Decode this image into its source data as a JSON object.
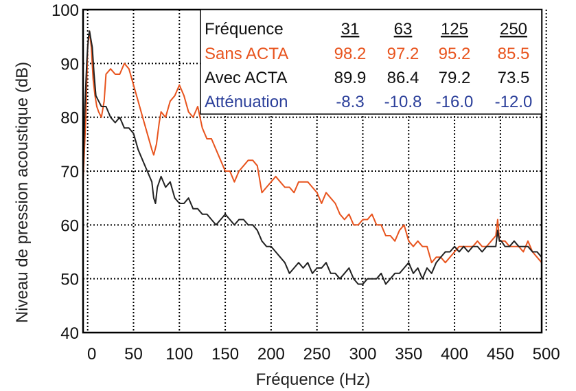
{
  "chart_data": {
    "type": "line",
    "xlabel": "Fréquence (Hz)",
    "ylabel": "Niveau de pression acoustique (dB)",
    "xlim": [
      -5,
      495
    ],
    "ylim": [
      40,
      100
    ],
    "xticks": [
      "0",
      "50",
      "100",
      "150",
      "200",
      "250",
      "300",
      "350",
      "400",
      "450",
      "500"
    ],
    "yticks": [
      "40",
      "50",
      "60",
      "70",
      "80",
      "90",
      "100"
    ],
    "grid": true,
    "series": [
      {
        "name": "Sans ACTA",
        "color": "#e8541e",
        "x": [
          -5,
          -2,
          0,
          2,
          4,
          6,
          8,
          10,
          12,
          15,
          18,
          20,
          25,
          30,
          35,
          40,
          45,
          50,
          55,
          60,
          65,
          70,
          72,
          75,
          78,
          80,
          85,
          90,
          95,
          100,
          105,
          110,
          115,
          120,
          125,
          130,
          135,
          140,
          145,
          150,
          155,
          160,
          165,
          170,
          175,
          180,
          185,
          190,
          195,
          200,
          205,
          210,
          215,
          220,
          225,
          230,
          235,
          240,
          245,
          250,
          255,
          260,
          265,
          270,
          275,
          280,
          285,
          290,
          295,
          300,
          305,
          310,
          315,
          320,
          325,
          330,
          335,
          340,
          345,
          350,
          355,
          360,
          365,
          370,
          375,
          380,
          385,
          390,
          395,
          400,
          405,
          410,
          415,
          420,
          425,
          430,
          435,
          440,
          445,
          447,
          449,
          451,
          455,
          460,
          465,
          470,
          475,
          480,
          485,
          490,
          495
        ],
        "y": [
          68,
          80,
          93,
          96,
          93,
          87,
          84,
          82,
          81,
          80,
          83,
          88,
          89,
          88,
          88,
          90,
          89,
          86,
          83,
          80,
          77,
          74,
          73,
          75,
          79,
          81,
          80,
          83,
          84,
          86,
          84,
          81,
          80,
          82,
          78,
          76,
          76,
          74,
          72,
          70,
          70,
          68,
          70,
          71,
          72,
          72,
          71,
          66,
          67,
          68,
          69,
          68,
          67,
          67,
          66,
          68,
          68,
          68,
          67,
          66,
          64,
          66,
          65,
          64,
          62,
          61,
          62,
          60,
          60,
          61,
          61,
          62,
          60,
          60,
          58,
          58,
          57,
          59,
          60,
          57,
          56,
          57,
          56,
          56,
          53,
          54,
          54,
          53,
          54,
          55,
          56,
          56,
          56,
          56,
          57,
          56,
          56,
          57,
          58,
          61,
          57,
          57,
          57,
          56,
          56,
          56,
          55,
          57,
          55,
          54,
          53
        ]
      },
      {
        "name": "Avec ACTA",
        "color": "#222222",
        "x": [
          -5,
          -3,
          -1,
          0,
          1,
          2,
          3,
          5,
          7,
          9,
          12,
          15,
          20,
          25,
          30,
          35,
          40,
          45,
          50,
          55,
          60,
          65,
          70,
          72,
          74,
          76,
          78,
          80,
          85,
          90,
          95,
          100,
          105,
          110,
          115,
          120,
          125,
          130,
          135,
          140,
          145,
          150,
          155,
          160,
          165,
          170,
          175,
          180,
          185,
          190,
          195,
          200,
          205,
          210,
          215,
          220,
          225,
          230,
          235,
          240,
          245,
          250,
          255,
          260,
          265,
          270,
          275,
          280,
          285,
          290,
          295,
          300,
          305,
          310,
          315,
          320,
          325,
          330,
          335,
          340,
          345,
          350,
          355,
          360,
          365,
          370,
          375,
          380,
          385,
          390,
          395,
          400,
          405,
          410,
          415,
          420,
          425,
          430,
          435,
          440,
          445,
          447,
          449,
          451,
          455,
          460,
          465,
          470,
          475,
          480,
          485,
          490,
          495
        ],
        "y": [
          70,
          82,
          90,
          93,
          95,
          96,
          95,
          93,
          88,
          84,
          83,
          82,
          82,
          80,
          79,
          80,
          78,
          78,
          77,
          74,
          72,
          70,
          68,
          65,
          64,
          67,
          68,
          69,
          67,
          68,
          65,
          64,
          64,
          65,
          63,
          63,
          62,
          62,
          61,
          60,
          61,
          62,
          61,
          60,
          61,
          61,
          60,
          60,
          59,
          57,
          56,
          56,
          55,
          54,
          53,
          51,
          52,
          53,
          52,
          53,
          51,
          52,
          52,
          53,
          51,
          51,
          50,
          51,
          52,
          50,
          49,
          49,
          50,
          50,
          50,
          51,
          49,
          50,
          51,
          51,
          52,
          53,
          51,
          52,
          50,
          52,
          51,
          53,
          54,
          55,
          55,
          56,
          55,
          56,
          55,
          56,
          56,
          55,
          56,
          56,
          56,
          59,
          57,
          57,
          56,
          56,
          57,
          56,
          56,
          56,
          55,
          55,
          54
        ]
      }
    ],
    "table": {
      "header_label": "Fréquence",
      "header_values": [
        "31",
        "63",
        "125",
        "250"
      ],
      "rows": [
        {
          "label": "Sans ACTA",
          "color": "#e8541e",
          "values": [
            "98.2",
            "97.2",
            "95.2",
            "85.5"
          ]
        },
        {
          "label": "Avec ACTA",
          "color": "#111111",
          "values": [
            "89.9",
            "86.4",
            "79.2",
            "73.5"
          ]
        },
        {
          "label": "Atténuation",
          "color": "#2b3f9a",
          "values": [
            "-8.3",
            "-10.8",
            "-16.0",
            "-12.0"
          ]
        }
      ]
    }
  }
}
